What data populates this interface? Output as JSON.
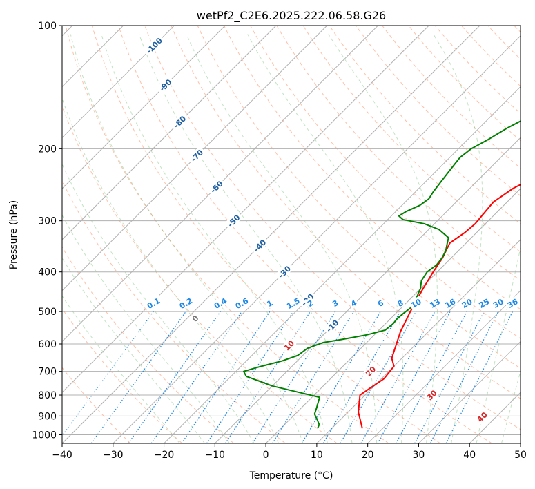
{
  "chart_data": {
    "type": "line",
    "title": "wetPf2_C2E6.2025.222.06.58.G26",
    "xlabel": "Temperature (°C)",
    "ylabel": "Pressure (hPa)",
    "xlim": [
      -40,
      50
    ],
    "ylim": [
      1050,
      100
    ],
    "y_scale": "log",
    "x_ticks": [
      -40,
      -30,
      -20,
      -10,
      0,
      10,
      20,
      30,
      40,
      50
    ],
    "y_ticks": [
      100,
      200,
      300,
      400,
      500,
      600,
      700,
      800,
      900,
      1000
    ],
    "grid": true,
    "series": [
      {
        "color": "#ff0000",
        "points": [
          [
            16,
            965
          ],
          [
            12,
            880
          ],
          [
            9,
            800
          ],
          [
            9.6,
            770
          ],
          [
            10.5,
            730
          ],
          [
            10,
            680
          ],
          [
            8,
            650
          ],
          [
            4.5,
            560
          ],
          [
            2.5,
            500
          ],
          [
            0.5,
            440
          ],
          [
            -0.8,
            400
          ],
          [
            -1.7,
            370
          ],
          [
            -3.2,
            340
          ],
          [
            -2.3,
            320
          ],
          [
            -2,
            305
          ],
          [
            -2.3,
            290
          ],
          [
            -2.7,
            270
          ],
          [
            -1.5,
            250
          ],
          [
            2,
            225
          ],
          [
            5.5,
            200
          ],
          [
            8.5,
            180
          ],
          [
            10.5,
            163
          ],
          [
            12,
            152
          ],
          [
            15,
            140
          ],
          [
            19,
            127
          ],
          [
            22,
            120
          ],
          [
            24,
            112
          ],
          [
            25.5,
            106
          ],
          [
            26.5,
            100
          ]
        ]
      },
      {
        "color": "#008000",
        "points": [
          [
            7.2,
            965
          ],
          [
            6.8,
            945
          ],
          [
            5.5,
            920
          ],
          [
            3.8,
            890
          ],
          [
            3,
            860
          ],
          [
            1.5,
            810
          ],
          [
            -3,
            790
          ],
          [
            -10,
            760
          ],
          [
            -17,
            720
          ],
          [
            -18.5,
            700
          ],
          [
            -16,
            680
          ],
          [
            -13,
            660
          ],
          [
            -11,
            640
          ],
          [
            -10.5,
            615
          ],
          [
            -8.5,
            595
          ],
          [
            -5.5,
            585
          ],
          [
            -1.5,
            570
          ],
          [
            1.2,
            555
          ],
          [
            1.5,
            535
          ],
          [
            1.3,
            520
          ],
          [
            1.5,
            505
          ],
          [
            1.8,
            490
          ],
          [
            1.1,
            465
          ],
          [
            0,
            440
          ],
          [
            -1.4,
            420
          ],
          [
            -2,
            400
          ],
          [
            -1.5,
            385
          ],
          [
            -1.8,
            370
          ],
          [
            -2.5,
            355
          ],
          [
            -3.7,
            340
          ],
          [
            -4.5,
            330
          ],
          [
            -8,
            315
          ],
          [
            -12,
            305
          ],
          [
            -17,
            298
          ],
          [
            -18.5,
            292
          ],
          [
            -18,
            285
          ],
          [
            -16.5,
            275
          ],
          [
            -16,
            265
          ],
          [
            -16.5,
            255
          ],
          [
            -17,
            240
          ],
          [
            -17.5,
            225
          ],
          [
            -18,
            210
          ],
          [
            -17.5,
            200
          ],
          [
            -16,
            190
          ],
          [
            -14.5,
            178
          ],
          [
            -13,
            170
          ],
          [
            -11,
            158
          ],
          [
            -9.5,
            148
          ],
          [
            -8.5,
            140
          ],
          [
            -7.5,
            130
          ],
          [
            -6.5,
            125
          ],
          [
            -4.5,
            120
          ],
          [
            -1,
            115
          ],
          [
            0.5,
            108
          ],
          [
            1,
            100
          ]
        ]
      }
    ],
    "isotherm_labels": [
      "-100",
      "-90",
      "-80",
      "-70",
      "-60",
      "-50",
      "-40",
      "-30",
      "-20",
      "-10"
    ],
    "mixing_ratio_labels": [
      "0.1",
      "0.2",
      "0.4",
      "0.6",
      "1",
      "1.5",
      "2",
      "3",
      "4",
      "6",
      "8",
      "10",
      "13",
      "16",
      "20",
      "25",
      "30",
      "36"
    ],
    "moist_adiabat_labels": [
      "0",
      "10",
      "20",
      "30",
      "40"
    ],
    "colors": {
      "temperature": "#ff0000",
      "dewpoint": "#008000",
      "isotherm_label": "#1f5fa0",
      "mixing_ratio": "#1e88e5",
      "moist_adiabat_label": "#d62728",
      "zero_label": "#777777",
      "dry_adiabat": "#ff7f50",
      "moist_adiabat": "#4caf50",
      "grid": "#b0b0b0"
    }
  }
}
